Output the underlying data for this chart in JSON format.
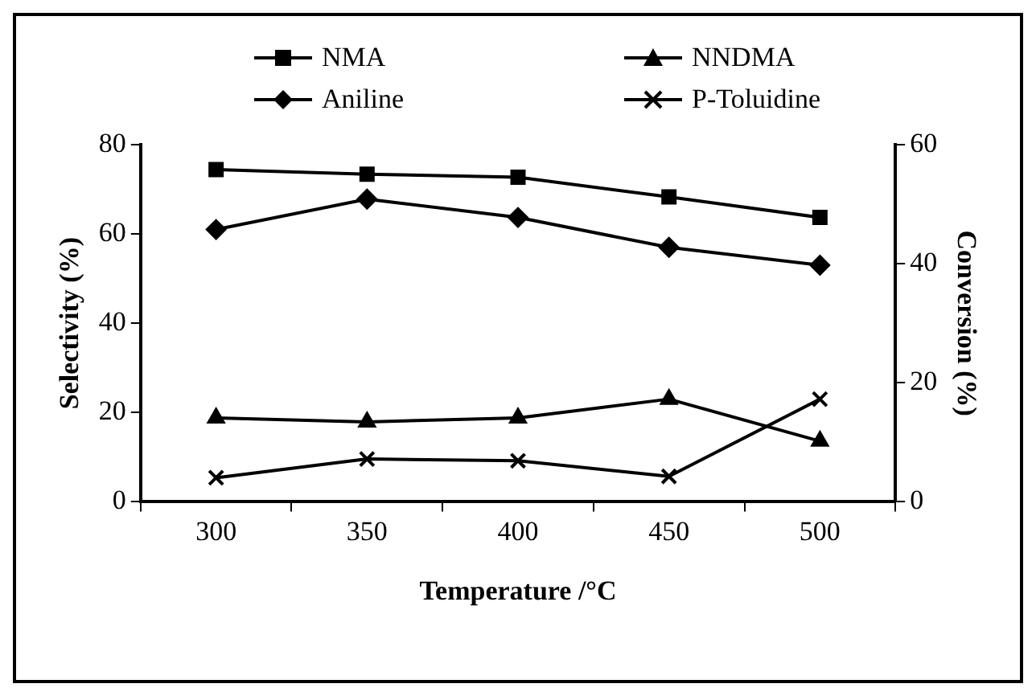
{
  "chart_data": {
    "type": "line",
    "xlabel": "Temperature /°C",
    "ylabel": "Selectivity (%)",
    "y2label": "Conversion (%)",
    "categories": [
      "300",
      "350",
      "400",
      "450",
      "500"
    ],
    "series": [
      {
        "name": "NMA",
        "color": "#000000",
        "marker": "square",
        "values": [
          74.4,
          73.4,
          72.7,
          68.3,
          63.7
        ]
      },
      {
        "name": "NNDMA",
        "color": "#000000",
        "marker": "triangle",
        "values": [
          18.8,
          17.9,
          18.8,
          23,
          13.6
        ]
      },
      {
        "name": "Aniline",
        "color": "#000000",
        "marker": "diamond",
        "values": [
          61,
          67.8,
          63.7,
          57,
          53
        ]
      },
      {
        "name": "P-Toluidine",
        "color": "#000000",
        "marker": "cross",
        "values": [
          5.4,
          9.6,
          9.2,
          5.7,
          23
        ]
      }
    ],
    "ylim": [
      0,
      80
    ],
    "yticks": [
      0,
      20,
      40,
      60,
      80
    ],
    "y2lim": [
      0,
      60
    ],
    "y2ticks": [
      0,
      20,
      40,
      60
    ],
    "grid": false,
    "legend": "top",
    "line_style": "solid"
  }
}
